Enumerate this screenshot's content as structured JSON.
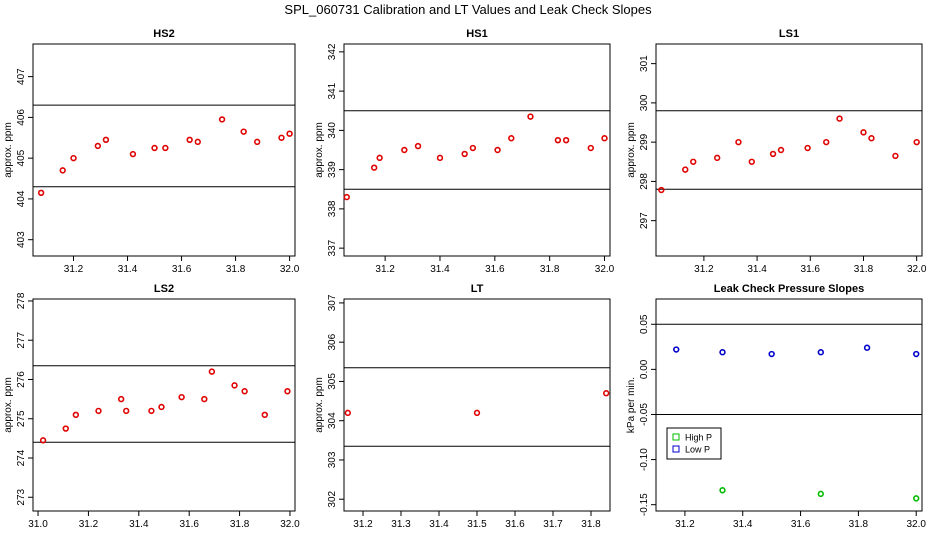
{
  "title": "SPL_060731  Calibration and LT Values and Leak Check Slopes",
  "chart_data": [
    {
      "type": "scatter",
      "title": "HS2",
      "ylabel": "approx. ppm",
      "xlim": [
        31.05,
        32.02
      ],
      "ylim": [
        402.6,
        407.8
      ],
      "xticks": [
        31.2,
        31.4,
        31.6,
        31.8,
        32.0
      ],
      "xtick_labels": [
        "31.2",
        "31.4",
        "31.6",
        "31.8",
        "32.0"
      ],
      "yticks": [
        403,
        404,
        405,
        406,
        407
      ],
      "ytick_labels": [
        "403",
        "404",
        "405",
        "406",
        "407"
      ],
      "hlines": [
        404.3,
        406.3
      ],
      "series": [
        {
          "color": "#e00000",
          "x": [
            31.08,
            31.16,
            31.2,
            31.29,
            31.32,
            31.42,
            31.5,
            31.54,
            31.63,
            31.66,
            31.75,
            31.83,
            31.88,
            31.97,
            32.0
          ],
          "y": [
            404.15,
            404.7,
            405.0,
            405.3,
            405.45,
            405.1,
            405.25,
            405.25,
            405.45,
            405.4,
            405.95,
            405.65,
            405.4,
            405.5,
            405.6
          ]
        }
      ]
    },
    {
      "type": "scatter",
      "title": "HS1",
      "ylabel": "approx. ppm",
      "xlim": [
        31.05,
        32.02
      ],
      "ylim": [
        336.8,
        342.2
      ],
      "xticks": [
        31.2,
        31.4,
        31.6,
        31.8,
        32.0
      ],
      "xtick_labels": [
        "31.2",
        "31.4",
        "31.6",
        "31.8",
        "32.0"
      ],
      "yticks": [
        337,
        338,
        339,
        340,
        341,
        342
      ],
      "ytick_labels": [
        "337",
        "338",
        "339",
        "340",
        "341",
        "342"
      ],
      "hlines": [
        338.5,
        340.5
      ],
      "series": [
        {
          "color": "#e00000",
          "x": [
            31.06,
            31.16,
            31.18,
            31.27,
            31.32,
            31.4,
            31.49,
            31.52,
            31.61,
            31.66,
            31.73,
            31.83,
            31.86,
            31.95,
            32.0
          ],
          "y": [
            338.3,
            339.05,
            339.3,
            339.5,
            339.6,
            339.3,
            339.4,
            339.55,
            339.5,
            339.8,
            340.35,
            339.75,
            339.75,
            339.55,
            339.8
          ]
        }
      ]
    },
    {
      "type": "scatter",
      "title": "LS1",
      "ylabel": "approx. ppm",
      "xlim": [
        31.02,
        32.02
      ],
      "ylim": [
        296.1,
        301.5
      ],
      "xticks": [
        31.2,
        31.4,
        31.6,
        31.8,
        32.0
      ],
      "xtick_labels": [
        "31.2",
        "31.4",
        "31.6",
        "31.8",
        "32.0"
      ],
      "yticks": [
        297,
        298,
        299,
        300,
        301
      ],
      "ytick_labels": [
        "297",
        "298",
        "299",
        "300",
        "301"
      ],
      "hlines": [
        297.8,
        299.8
      ],
      "series": [
        {
          "color": "#e00000",
          "x": [
            31.04,
            31.13,
            31.16,
            31.25,
            31.33,
            31.38,
            31.46,
            31.49,
            31.59,
            31.66,
            31.71,
            31.8,
            31.83,
            31.92,
            32.0
          ],
          "y": [
            297.78,
            298.3,
            298.5,
            298.6,
            299.0,
            298.5,
            298.7,
            298.8,
            298.85,
            299.0,
            299.6,
            299.25,
            299.1,
            298.65,
            299.0
          ]
        }
      ]
    },
    {
      "type": "scatter",
      "title": "LS2",
      "ylabel": "approx. ppm",
      "xlim": [
        30.98,
        32.02
      ],
      "ylim": [
        272.65,
        278.05
      ],
      "xticks": [
        31.0,
        31.2,
        31.4,
        31.6,
        31.8,
        32.0
      ],
      "xtick_labels": [
        "31.0",
        "31.2",
        "31.4",
        "31.6",
        "31.8",
        "32.0"
      ],
      "yticks": [
        273,
        274,
        275,
        276,
        277,
        278
      ],
      "ytick_labels": [
        "273",
        "274",
        "275",
        "276",
        "277",
        "278"
      ],
      "hlines": [
        274.4,
        276.35
      ],
      "series": [
        {
          "color": "#e00000",
          "x": [
            31.02,
            31.11,
            31.15,
            31.24,
            31.33,
            31.35,
            31.45,
            31.49,
            31.57,
            31.66,
            31.69,
            31.78,
            31.82,
            31.9,
            31.99
          ],
          "y": [
            274.45,
            274.75,
            275.1,
            275.2,
            275.5,
            275.2,
            275.2,
            275.3,
            275.55,
            275.5,
            276.2,
            275.85,
            275.7,
            275.1,
            275.7
          ]
        }
      ]
    },
    {
      "type": "scatter",
      "title": "LT",
      "ylabel": "approx. ppm",
      "xlim": [
        31.15,
        31.85
      ],
      "ylim": [
        301.7,
        307.1
      ],
      "xticks": [
        31.2,
        31.3,
        31.4,
        31.5,
        31.6,
        31.7,
        31.8
      ],
      "xtick_labels": [
        "31.2",
        "31.3",
        "31.4",
        "31.5",
        "31.6",
        "31.7",
        "31.8"
      ],
      "yticks": [
        302,
        303,
        304,
        305,
        306,
        307
      ],
      "ytick_labels": [
        "302",
        "303",
        "304",
        "305",
        "306",
        "307"
      ],
      "hlines": [
        303.35,
        305.35
      ],
      "series": [
        {
          "color": "#e00000",
          "x": [
            31.16,
            31.5,
            31.84
          ],
          "y": [
            304.2,
            304.2,
            304.7
          ]
        }
      ]
    },
    {
      "type": "scatter",
      "title": "Leak Check Pressure Slopes",
      "ylabel": "kPa per min.",
      "xlim": [
        31.1,
        32.02
      ],
      "ylim": [
        -0.157,
        0.078
      ],
      "xticks": [
        31.2,
        31.4,
        31.6,
        31.8,
        32.0
      ],
      "xtick_labels": [
        "31.2",
        "31.4",
        "31.6",
        "31.8",
        "32.0"
      ],
      "yticks": [
        -0.15,
        -0.1,
        -0.05,
        0.0,
        0.05
      ],
      "ytick_labels": [
        "-0.15",
        "-0.10",
        "-0.05",
        "0.00",
        "0.05"
      ],
      "hlines": [
        -0.05,
        0.05
      ],
      "legend": {
        "position": "bottom-left",
        "entries": [
          {
            "label": "High P",
            "color": "#00bb00"
          },
          {
            "label": "Low P",
            "color": "#0000cc"
          }
        ]
      },
      "series": [
        {
          "name": "High P",
          "color": "#00bb00",
          "x": [
            31.33,
            31.67,
            32.0
          ],
          "y": [
            -0.134,
            -0.138,
            -0.143
          ]
        },
        {
          "name": "Low P",
          "color": "#0000cc",
          "x": [
            31.17,
            31.33,
            31.5,
            31.67,
            31.83,
            32.0
          ],
          "y": [
            0.022,
            0.019,
            0.017,
            0.019,
            0.024,
            0.017
          ]
        }
      ]
    }
  ]
}
